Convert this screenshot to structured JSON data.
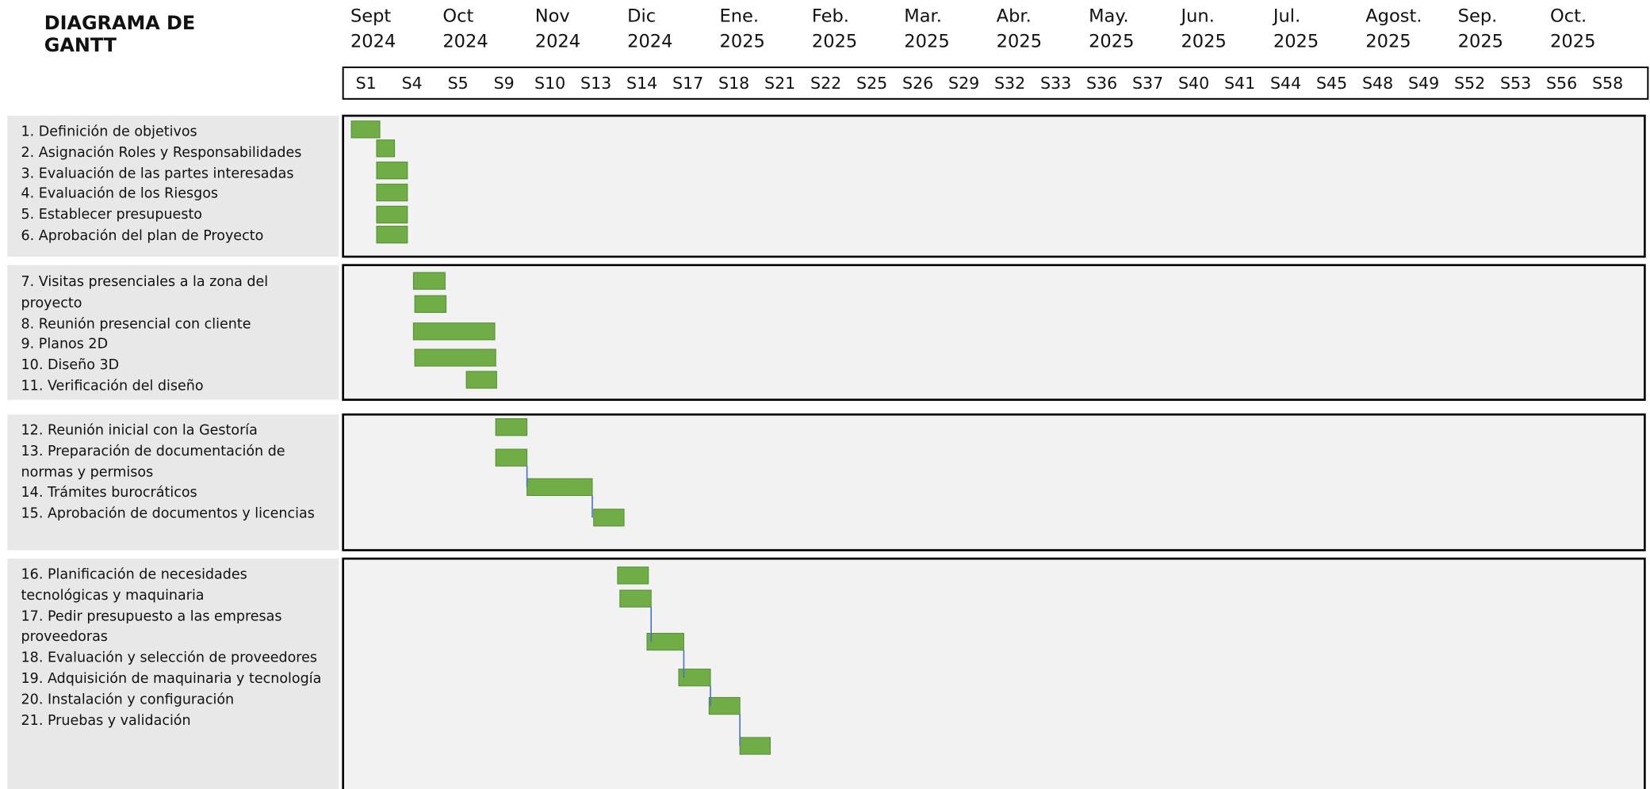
{
  "chart_data": {
    "type": "gantt",
    "title": "DIAGRAMA DE GANTT",
    "color": "#70ad47",
    "months": [
      "Sept",
      "Oct",
      "Nov",
      "Dic",
      "Ene.",
      "Feb.",
      "Mar.",
      "Abr.",
      "May.",
      "Jun.",
      "Jul.",
      "Agost.",
      "Sep.",
      "Oct."
    ],
    "years": [
      "2024",
      "2024",
      "2024",
      "2024",
      "2025",
      "2025",
      "2025",
      "2025",
      "2025",
      "2025",
      "2025",
      "2025",
      "2025",
      "2025"
    ],
    "weeks": [
      "S1",
      "S4",
      "S5",
      "S9",
      "S10",
      "S13",
      "S14",
      "S17",
      "S18",
      "S21",
      "S22",
      "S25",
      "S26",
      "S29",
      "S32",
      "S33",
      "S36",
      "S37",
      "S40",
      "S41",
      "S44",
      "S45",
      "S48",
      "S49",
      "S52",
      "S53",
      "S56",
      "S58"
    ],
    "groups": [
      [
        {
          "name": "1. Definición de objetivos",
          "start": 0.18,
          "end": 0.8
        },
        {
          "name": "2. Asignación Roles y Responsabilidades",
          "start": 0.73,
          "end": 1.12
        },
        {
          "name": "3. Evaluación de las partes interesadas",
          "start": 0.73,
          "end": 1.4
        },
        {
          "name": "4. Evaluación de los Riesgos",
          "start": 0.73,
          "end": 1.4
        },
        {
          "name": "5. Establecer presupuesto",
          "start": 0.73,
          "end": 1.4
        },
        {
          "name": "6. Aprobación del plan de Proyecto",
          "start": 0.73,
          "end": 1.4
        }
      ],
      [
        {
          "name": "7. Visitas presenciales a la zona del proyecto",
          "start": 1.53,
          "end": 2.22
        },
        {
          "name": "8. Reunión presencial con cliente",
          "start": 1.56,
          "end": 2.24
        },
        {
          "name": "9. Planos 2D",
          "start": 1.53,
          "end": 3.3
        },
        {
          "name": "10. Diseño 3D",
          "start": 1.56,
          "end": 3.32
        },
        {
          "name": "11. Verificación del diseño",
          "start": 2.68,
          "end": 3.34
        }
      ],
      [
        {
          "name": "12. Reunión inicial con la Gestoría",
          "start": 3.32,
          "end": 4.0
        },
        {
          "name": "13. Preparación de documentación de normas y permisos",
          "start": 3.32,
          "end": 4.0
        },
        {
          "name": "14. Trámites burocráticos",
          "start": 4.0,
          "end": 5.42
        },
        {
          "name": "15. Aprobación de documentos y licencias",
          "start": 5.45,
          "end": 6.11
        }
      ],
      [
        {
          "name": "16. Planificación de necesidades tecnológicas y maquinaria",
          "start": 5.97,
          "end": 6.64
        },
        {
          "name": "17. Pedir presupuesto a las empresas proveedoras",
          "start": 6.02,
          "end": 6.7
        },
        {
          "name": "18. Evaluación y selección de proveedores",
          "start": 6.61,
          "end": 7.41
        },
        {
          "name": "19. Adquisición de maquinaria y tecnología",
          "start": 7.3,
          "end": 7.99
        },
        {
          "name": "20. Instalación y configuración",
          "start": 7.96,
          "end": 8.63
        },
        {
          "name": "21. Pruebas y validación",
          "start": 8.63,
          "end": 9.29
        }
      ]
    ]
  }
}
